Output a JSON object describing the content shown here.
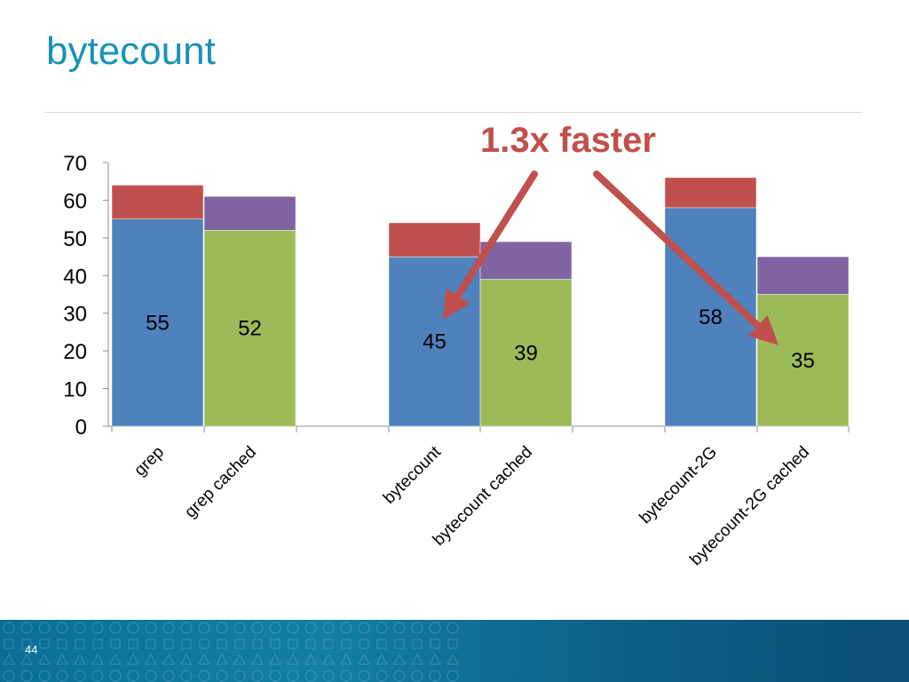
{
  "slide": {
    "title": "bytecount",
    "page_number": "44"
  },
  "colors": {
    "title": "#1793b5",
    "blue": "#4f81bd",
    "red": "#c0504d",
    "green": "#9bbb59",
    "purple": "#8064a2",
    "annotation": "#c0504d",
    "footer": "#0c6f96"
  },
  "chart_data": {
    "type": "bar",
    "stacked": true,
    "categories": [
      "grep",
      "grep cached",
      "bytecount",
      "bytecount cached",
      "bytecount-2G",
      "bytecount-2G cached"
    ],
    "bars": [
      {
        "label": "grep",
        "bottom": 55,
        "top": 9,
        "bottom_color": "blue",
        "top_color": "red",
        "data_label": "55"
      },
      {
        "label": "grep cached",
        "bottom": 52,
        "top": 9,
        "bottom_color": "green",
        "top_color": "purple",
        "data_label": "52"
      },
      {
        "label": "bytecount",
        "bottom": 45,
        "top": 9,
        "bottom_color": "blue",
        "top_color": "red",
        "data_label": "45"
      },
      {
        "label": "bytecount cached",
        "bottom": 39,
        "top": 10,
        "bottom_color": "green",
        "top_color": "purple",
        "data_label": "39"
      },
      {
        "label": "bytecount-2G",
        "bottom": 58,
        "top": 8,
        "bottom_color": "blue",
        "top_color": "red",
        "data_label": "58"
      },
      {
        "label": "bytecount-2G cached",
        "bottom": 35,
        "top": 10,
        "bottom_color": "green",
        "top_color": "purple",
        "data_label": "35"
      }
    ],
    "ylim": [
      0,
      70
    ],
    "yticks": [
      "0",
      "10",
      "20",
      "30",
      "40",
      "50",
      "60",
      "70"
    ],
    "title": "",
    "xlabel": "",
    "ylabel": "",
    "grid": false,
    "legend": "none",
    "annotation": {
      "text": "1.3x faster",
      "arrows_point_to": [
        "bytecount",
        "bytecount-2G cached"
      ]
    }
  }
}
